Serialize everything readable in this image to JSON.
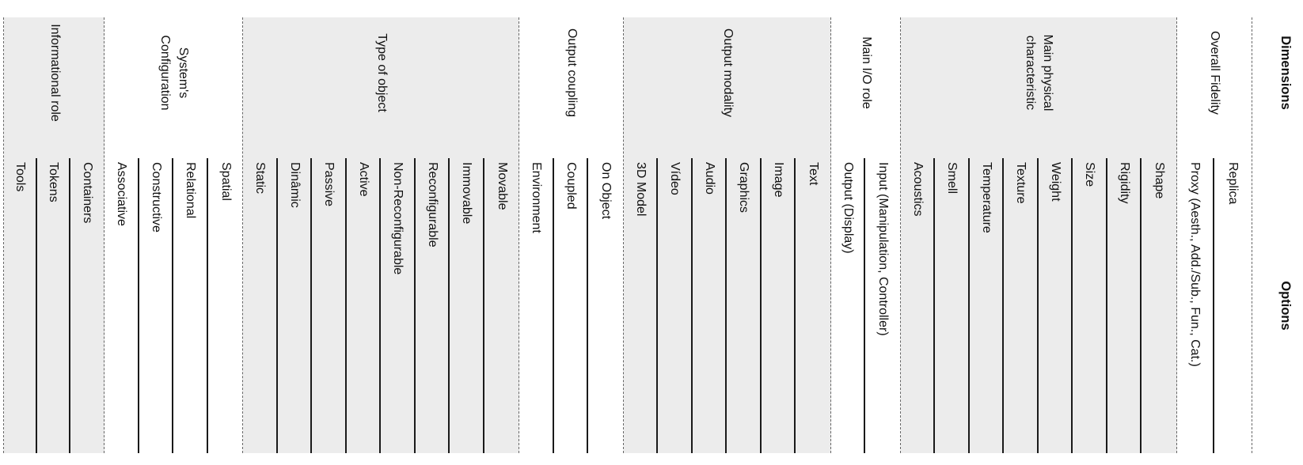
{
  "colors": {
    "shaded_band": "#ececec",
    "solid_line": "#1a1a1a",
    "dashed_line": "#666666",
    "text": "#111111",
    "background": "#ffffff"
  },
  "table": {
    "orientation_note": "table rendered rotated 90 degrees clockwise",
    "header": {
      "dimensions": "Dimensions",
      "options": "Options"
    },
    "groups": [
      {
        "dimension": "Overall Fidelity",
        "options": [
          "Replica",
          "Proxy (Aesth., Add./Sub., Fun., Cat.)"
        ]
      },
      {
        "dimension": "Main physical characteristic",
        "options": [
          "Shape",
          "Rigidity",
          "Size",
          "Weight",
          "Texture",
          "Temperature",
          "Smell",
          "Acoustics"
        ]
      },
      {
        "dimension": "Main I/O role",
        "options": [
          "Input (Manipulation, Controller)",
          "Output (Display)"
        ]
      },
      {
        "dimension": "Output modality",
        "options": [
          "Text",
          "Image",
          "Graphics",
          "Audio",
          "Vídeo",
          "3D Model"
        ]
      },
      {
        "dimension": "Output coupling",
        "options": [
          "On Object",
          "Coupled",
          "Environment"
        ]
      },
      {
        "dimension": "Type of object",
        "options": [
          "Movable",
          "Immovable",
          "Reconfigurable",
          "Non-Reconfigurable",
          "Active",
          "Passive",
          "Dinâmic",
          "Static"
        ]
      },
      {
        "dimension": "System's Configuration",
        "options": [
          "Spatial",
          "Relational",
          "Constructive",
          "Associative"
        ]
      },
      {
        "dimension": "Informational role",
        "options": [
          "Containers",
          "Tokens",
          "Tools"
        ]
      }
    ]
  }
}
